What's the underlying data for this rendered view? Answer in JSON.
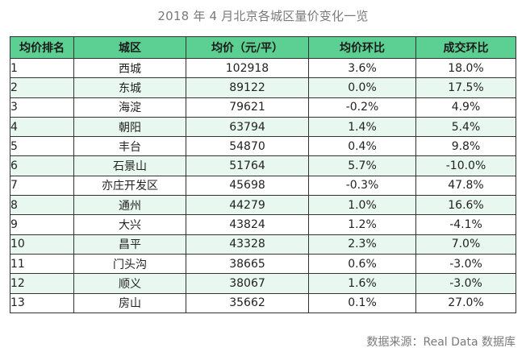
{
  "title": "2018 年 4 月北京各城区量价变化一览",
  "table": {
    "headers": {
      "rank": "均价排名",
      "district": "城区",
      "price": "均价（元/平）",
      "price_mom": "均价环比",
      "volume_mom": "成交环比"
    },
    "rows": [
      {
        "rank": "1",
        "district": "西城",
        "price": "102918",
        "price_mom": "3.6%",
        "volume_mom": "18.0%"
      },
      {
        "rank": "2",
        "district": "东城",
        "price": "89122",
        "price_mom": "0.0%",
        "volume_mom": "17.5%"
      },
      {
        "rank": "3",
        "district": "海淀",
        "price": "79621",
        "price_mom": "-0.2%",
        "volume_mom": "4.9%"
      },
      {
        "rank": "4",
        "district": "朝阳",
        "price": "63794",
        "price_mom": "1.4%",
        "volume_mom": "5.4%"
      },
      {
        "rank": "5",
        "district": "丰台",
        "price": "54870",
        "price_mom": "0.4%",
        "volume_mom": "9.8%"
      },
      {
        "rank": "6",
        "district": "石景山",
        "price": "51764",
        "price_mom": "5.7%",
        "volume_mom": "-10.0%"
      },
      {
        "rank": "7",
        "district": "亦庄开发区",
        "price": "45698",
        "price_mom": "-0.3%",
        "volume_mom": "47.8%"
      },
      {
        "rank": "8",
        "district": "通州",
        "price": "44279",
        "price_mom": "1.0%",
        "volume_mom": "16.6%"
      },
      {
        "rank": "9",
        "district": "大兴",
        "price": "43824",
        "price_mom": "1.2%",
        "volume_mom": "-4.1%"
      },
      {
        "rank": "10",
        "district": "昌平",
        "price": "43328",
        "price_mom": "2.3%",
        "volume_mom": "7.0%"
      },
      {
        "rank": "11",
        "district": "门头沟",
        "price": "38665",
        "price_mom": "0.6%",
        "volume_mom": "-3.0%"
      },
      {
        "rank": "12",
        "district": "顺义",
        "price": "38067",
        "price_mom": "1.6%",
        "volume_mom": "-3.0%"
      },
      {
        "rank": "13",
        "district": "房山",
        "price": "35662",
        "price_mom": "0.1%",
        "volume_mom": "27.0%"
      }
    ]
  },
  "source": "数据来源：Real  Data 数据库",
  "colors": {
    "header_bg": "#5ccf92",
    "stripe_bg": "#e8f7ef",
    "title_text": "#7a7a7a"
  }
}
